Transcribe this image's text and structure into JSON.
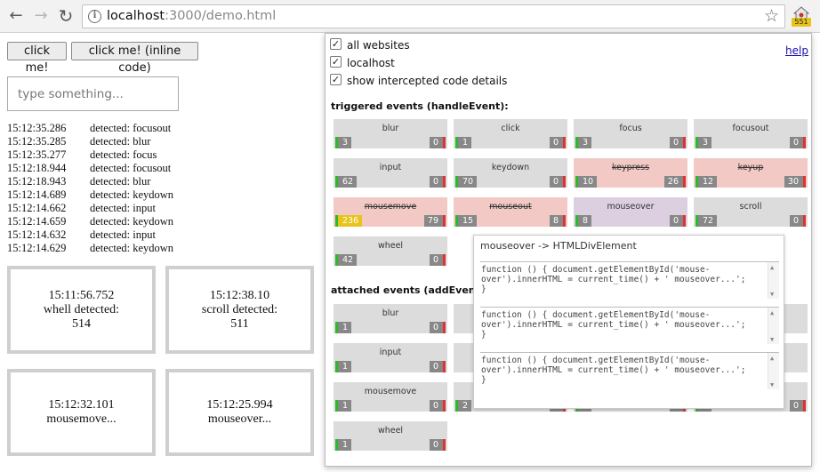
{
  "browser": {
    "url_host": "localhost",
    "url_rest": ":3000/demo.html",
    "extension_badge": "551"
  },
  "page": {
    "buttons": [
      "click me!",
      "click me! (inline code)"
    ],
    "input_placeholder": "type something...",
    "log": [
      {
        "time": "15:12:35.286",
        "msg": "detected: focusout"
      },
      {
        "time": "15:12:35.285",
        "msg": "detected: blur"
      },
      {
        "time": "15:12:35.277",
        "msg": "detected: focus"
      },
      {
        "time": "15:12:18.944",
        "msg": "detected: focusout"
      },
      {
        "time": "15:12:18.943",
        "msg": "detected: blur"
      },
      {
        "time": "15:12:14.689",
        "msg": "detected: keydown"
      },
      {
        "time": "15:12:14.662",
        "msg": "detected: input"
      },
      {
        "time": "15:12:14.659",
        "msg": "detected: keydown"
      },
      {
        "time": "15:12:14.632",
        "msg": "detected: input"
      },
      {
        "time": "15:12:14.629",
        "msg": "detected: keydown"
      }
    ],
    "boxes": [
      {
        "line1": "15:11:56.752",
        "line2": "whell detected:",
        "line3": "514"
      },
      {
        "line1": "15:12:38.10",
        "line2": "scroll detected:",
        "line3": "511"
      },
      {
        "line1": "15:12:32.101",
        "line2": "mousemove...",
        "line3": ""
      },
      {
        "line1": "15:12:25.994",
        "line2": "mouseover...",
        "line3": ""
      }
    ]
  },
  "popup": {
    "checkboxes": [
      "all websites",
      "localhost",
      "show intercepted code details"
    ],
    "help": "help",
    "triggered_title": "triggered events (handleEvent):",
    "attached_title": "attached events (addEventListener):",
    "triggered": [
      {
        "name": "blur",
        "left": "3",
        "right": "0",
        "state": "normal"
      },
      {
        "name": "click",
        "left": "1",
        "right": "0",
        "state": "normal"
      },
      {
        "name": "focus",
        "left": "3",
        "right": "0",
        "state": "normal"
      },
      {
        "name": "focusout",
        "left": "3",
        "right": "0",
        "state": "normal"
      },
      {
        "name": "input",
        "left": "62",
        "right": "0",
        "state": "normal"
      },
      {
        "name": "keydown",
        "left": "70",
        "right": "0",
        "state": "normal"
      },
      {
        "name": "keypress",
        "left": "10",
        "right": "26",
        "state": "blocked"
      },
      {
        "name": "keyup",
        "left": "12",
        "right": "30",
        "state": "blocked"
      },
      {
        "name": "mousemove",
        "left": "236",
        "right": "79",
        "state": "blocked",
        "left_highlight": true
      },
      {
        "name": "mouseout",
        "left": "15",
        "right": "8",
        "state": "blocked"
      },
      {
        "name": "mouseover",
        "left": "8",
        "right": "0",
        "state": "selected"
      },
      {
        "name": "scroll",
        "left": "72",
        "right": "0",
        "state": "normal"
      },
      {
        "name": "wheel",
        "left": "42",
        "right": "0",
        "state": "normal"
      }
    ],
    "attached": [
      {
        "name": "blur",
        "left": "1",
        "right": "0"
      },
      {
        "name": "",
        "left": "",
        "right": ""
      },
      {
        "name": "",
        "left": "",
        "right": ""
      },
      {
        "name": "",
        "left": "",
        "right": ""
      },
      {
        "name": "input",
        "left": "1",
        "right": "0"
      },
      {
        "name": "",
        "left": "",
        "right": ""
      },
      {
        "name": "",
        "left": "",
        "right": ""
      },
      {
        "name": "",
        "left": "",
        "right": ""
      },
      {
        "name": "mousemove",
        "left": "1",
        "right": "0"
      },
      {
        "name": "",
        "left": "2",
        "right": "0"
      },
      {
        "name": "",
        "left": "1",
        "right": "0"
      },
      {
        "name": "",
        "left": "1",
        "right": "0"
      },
      {
        "name": "wheel",
        "left": "1",
        "right": "0"
      }
    ],
    "tooltip": {
      "title": "mouseover -> HTMLDivElement",
      "code": [
        "function () { document.getElementById('mouse-\nover').innerHTML = current_time() + ' mouseover...';\n}",
        "function () { document.getElementById('mouse-\nover').innerHTML = current_time() + ' mouseover...';\n}",
        "function () { document.getElementById('mouse-\nover').innerHTML = current_time() + ' mouseover...';\n}"
      ]
    }
  }
}
